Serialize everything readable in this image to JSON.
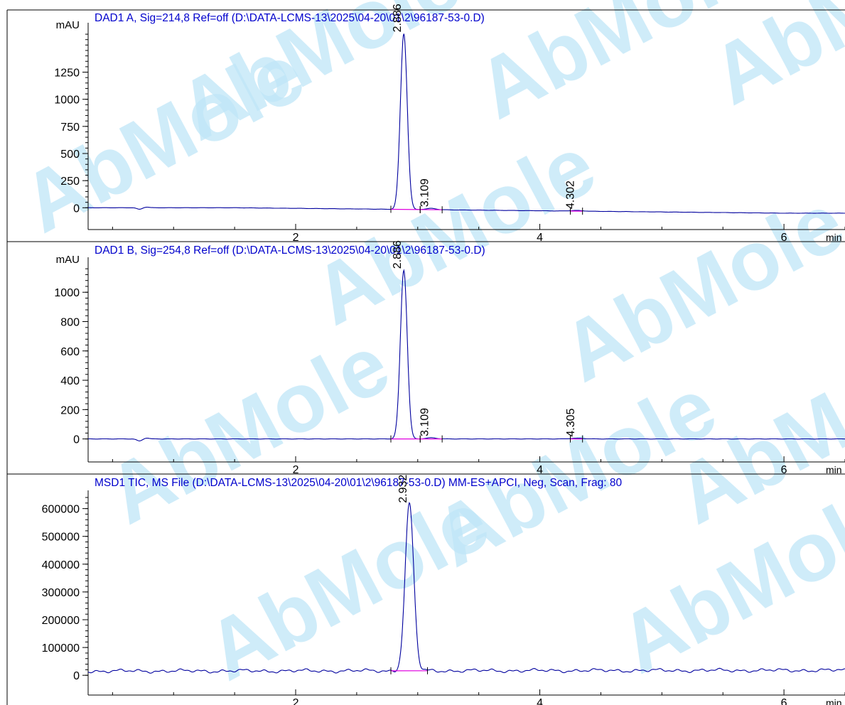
{
  "watermark": {
    "text": "AbMole",
    "color": "#bfe6f7",
    "accent": "#ffe28a"
  },
  "colors": {
    "title": "#0000cc",
    "trace": "#00009e",
    "baseline": "#e000e0",
    "axis": "#000000"
  },
  "chart_data": [
    {
      "type": "line",
      "title": "DAD1 A, Sig=214,8 Ref=off (D:\\DATA-LCMS-13\\2025\\04-20\\01\\2\\96187-53-0.D)",
      "ylabel": "mAU",
      "xlabel": "min",
      "xlim": [
        0.3,
        6.5
      ],
      "ylim": [
        -70,
        1640
      ],
      "xticks": [
        "2",
        "4",
        "6"
      ],
      "yticks": [
        "0",
        "250",
        "500",
        "750",
        "1000",
        "1250"
      ],
      "baseline_y": [
        0,
        -50
      ],
      "peaks": [
        {
          "label": "2.886",
          "x": 2.886,
          "height": 1620,
          "sigma": 0.028
        },
        {
          "label": "3.109",
          "x": 3.109,
          "height": 12,
          "sigma": 0.04
        },
        {
          "label": "4.302",
          "x": 4.302,
          "height": 6,
          "sigma": 0.05
        }
      ],
      "integration_marks": [
        [
          2.78,
          3.02
        ],
        [
          3.02,
          3.2
        ],
        [
          4.25,
          4.35
        ]
      ]
    },
    {
      "type": "line",
      "title": "DAD1 B, Sig=254,8 Ref=off (D:\\DATA-LCMS-13\\2025\\04-20\\01\\2\\96187-53-0.D)",
      "ylabel": "mAU",
      "xlabel": "min",
      "xlim": [
        0.3,
        6.5
      ],
      "ylim": [
        -60,
        1190
      ],
      "xticks": [
        "2",
        "4",
        "6"
      ],
      "yticks": [
        "0",
        "200",
        "400",
        "600",
        "800",
        "1000"
      ],
      "baseline_y": [
        0,
        0
      ],
      "peaks": [
        {
          "label": "2.886",
          "x": 2.886,
          "height": 1150,
          "sigma": 0.028
        },
        {
          "label": "3.109",
          "x": 3.109,
          "height": 8,
          "sigma": 0.04
        },
        {
          "label": "4.305",
          "x": 4.305,
          "height": 5,
          "sigma": 0.05
        }
      ],
      "integration_marks": [
        [
          2.78,
          3.02
        ],
        [
          3.02,
          3.2
        ],
        [
          4.25,
          4.35
        ]
      ]
    },
    {
      "type": "line",
      "title": "MSD1 TIC, MS File (D:\\DATA-LCMS-13\\2025\\04-20\\01\\2\\96187-53-0.D)    MM-ES+APCI, Neg, Scan, Frag: 80",
      "ylabel": "",
      "xlabel": "min",
      "xlim": [
        0.3,
        6.5
      ],
      "ylim": [
        -20000,
        640000
      ],
      "xticks": [
        "2",
        "4",
        "6"
      ],
      "yticks": [
        "0",
        "100000",
        "200000",
        "300000",
        "400000",
        "500000",
        "600000"
      ],
      "baseline_y": [
        15000,
        18000
      ],
      "peaks": [
        {
          "label": "2.932",
          "x": 2.932,
          "height": 600000,
          "sigma": 0.035
        }
      ],
      "integration_marks": [
        [
          2.78,
          3.08
        ]
      ]
    }
  ]
}
